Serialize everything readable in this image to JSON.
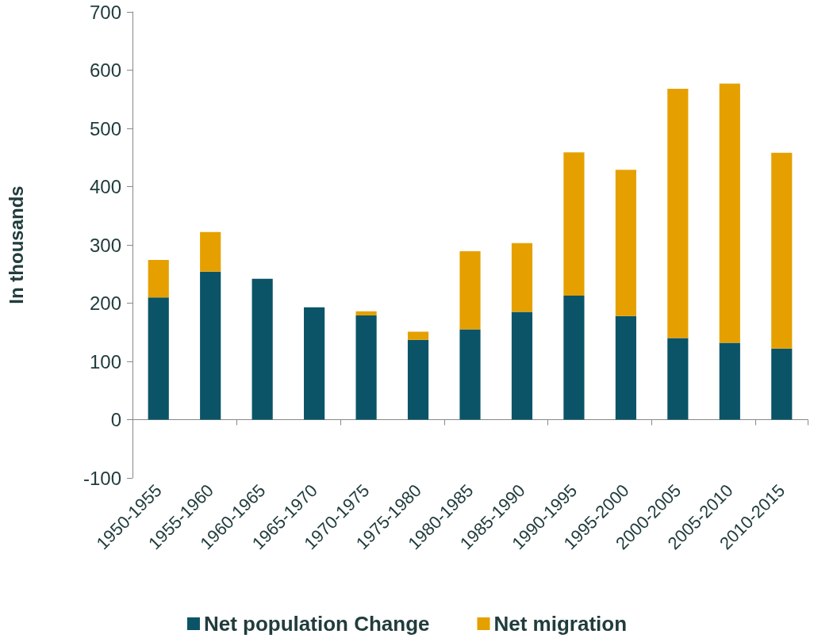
{
  "chart_data": {
    "type": "bar",
    "stacked": true,
    "ylabel": "In thousands",
    "categories": [
      "1950-1955",
      "1955-1960",
      "1960-1965",
      "1965-1970",
      "1970-1975",
      "1975-1980",
      "1980-1985",
      "1985-1990",
      "1990-1995",
      "1995-2000",
      "2000-2005",
      "2005-2010",
      "2010-2015"
    ],
    "series": [
      {
        "name": "Net population Change",
        "color": "#0b5467",
        "values": [
          210,
          254,
          242,
          193,
          179,
          137,
          155,
          185,
          213,
          178,
          140,
          132,
          122
        ]
      },
      {
        "name": "Net migration",
        "color": "#e5a000",
        "values": [
          64,
          68,
          0,
          0,
          7,
          14,
          134,
          118,
          246,
          251,
          428,
          445,
          336
        ]
      }
    ],
    "ylim": [
      -100,
      700
    ],
    "yticks": [
      -100,
      0,
      100,
      200,
      300,
      400,
      500,
      600,
      700
    ],
    "legend": "bottom"
  }
}
